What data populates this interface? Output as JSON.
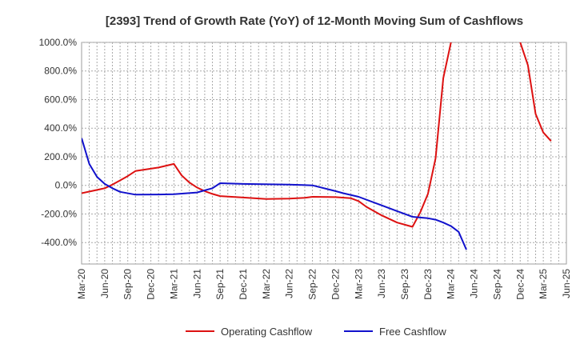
{
  "chart_data": {
    "type": "line",
    "title": "[2393]  Trend of Growth Rate (YoY) of 12-Month Moving Sum of Cashflows",
    "xlabel": "",
    "ylabel": "",
    "ylim": [
      -550,
      1000
    ],
    "y_ticks": [
      1000,
      800,
      600,
      400,
      200,
      0,
      -200,
      -400
    ],
    "y_tick_labels": [
      "1000.0%",
      "800.0%",
      "600.0%",
      "400.0%",
      "200.0%",
      "0.0%",
      "-200.0%",
      "-400.0%"
    ],
    "x_start": "2020-03",
    "x_end": "2025-06",
    "x_tick_labels": [
      "Mar-20",
      "Jun-20",
      "Sep-20",
      "Dec-20",
      "Mar-21",
      "Jun-21",
      "Sep-21",
      "Dec-21",
      "Mar-22",
      "Jun-22",
      "Sep-22",
      "Dec-22",
      "Mar-23",
      "Jun-23",
      "Sep-23",
      "Dec-23",
      "Mar-24",
      "Jun-24",
      "Sep-24",
      "Dec-24",
      "Mar-25",
      "Jun-25"
    ],
    "grid": true,
    "legend_position": "bottom",
    "series": [
      {
        "name": "Operating Cashflow",
        "color": "#dd1111",
        "points": [
          [
            "2020-03",
            -55
          ],
          [
            "2020-06",
            -20
          ],
          [
            "2020-07",
            5
          ],
          [
            "2020-08",
            35
          ],
          [
            "2020-09",
            65
          ],
          [
            "2020-10",
            100
          ],
          [
            "2021-01",
            125
          ],
          [
            "2021-03",
            150
          ],
          [
            "2021-04",
            70
          ],
          [
            "2021-05",
            20
          ],
          [
            "2021-06",
            -15
          ],
          [
            "2021-07",
            -40
          ],
          [
            "2021-08",
            -60
          ],
          [
            "2021-09",
            -75
          ],
          [
            "2021-12",
            -85
          ],
          [
            "2022-03",
            -95
          ],
          [
            "2022-06",
            -92
          ],
          [
            "2022-08",
            -87
          ],
          [
            "2022-09",
            -80
          ],
          [
            "2022-12",
            -82
          ],
          [
            "2023-02",
            -90
          ],
          [
            "2023-03",
            -110
          ],
          [
            "2023-04",
            -150
          ],
          [
            "2023-06",
            -210
          ],
          [
            "2023-08",
            -260
          ],
          [
            "2023-10",
            -290
          ],
          [
            "2023-11",
            -190
          ],
          [
            "2023-12",
            -60
          ],
          [
            "2024-01",
            190
          ],
          [
            "2024-02",
            750
          ],
          [
            "2024-03",
            1000
          ]
        ]
      },
      {
        "name": "Operating Cashflow",
        "color": "#dd1111",
        "points": [
          [
            "2024-12",
            1000
          ],
          [
            "2025-01",
            840
          ],
          [
            "2025-02",
            500
          ],
          [
            "2025-03",
            370
          ],
          [
            "2025-04",
            310
          ]
        ]
      },
      {
        "name": "Free Cashflow",
        "color": "#1111cc",
        "points": [
          [
            "2020-03",
            330
          ],
          [
            "2020-04",
            150
          ],
          [
            "2020-05",
            60
          ],
          [
            "2020-06",
            10
          ],
          [
            "2020-07",
            -20
          ],
          [
            "2020-08",
            -45
          ],
          [
            "2020-10",
            -65
          ],
          [
            "2021-01",
            -64
          ],
          [
            "2021-03",
            -62
          ],
          [
            "2021-06",
            -50
          ],
          [
            "2021-08",
            -20
          ],
          [
            "2021-09",
            15
          ],
          [
            "2021-12",
            10
          ],
          [
            "2022-06",
            5
          ],
          [
            "2022-09",
            0
          ],
          [
            "2022-12",
            -40
          ],
          [
            "2023-01",
            -55
          ],
          [
            "2023-03",
            -80
          ],
          [
            "2023-06",
            -140
          ],
          [
            "2023-08",
            -180
          ],
          [
            "2023-10",
            -220
          ],
          [
            "2023-12",
            -230
          ],
          [
            "2024-01",
            -240
          ],
          [
            "2024-02",
            -260
          ],
          [
            "2024-03",
            -285
          ],
          [
            "2024-04",
            -325
          ],
          [
            "2024-05",
            -450
          ]
        ]
      }
    ],
    "legend": [
      {
        "name": "Operating Cashflow",
        "color": "#dd1111"
      },
      {
        "name": "Free Cashflow",
        "color": "#1111cc"
      }
    ]
  }
}
